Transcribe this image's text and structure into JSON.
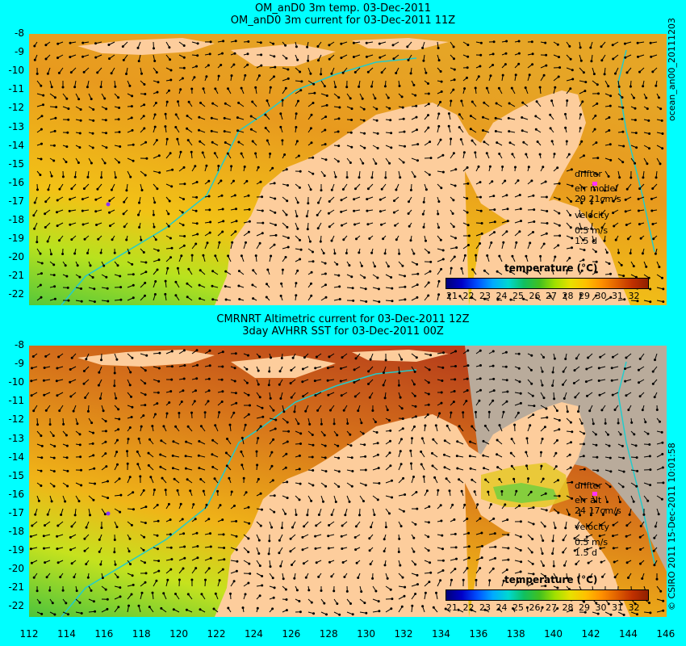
{
  "top": {
    "title1": "OM_anD0 3m temp. 03-Dec-2011",
    "title2": "OM_anD0 3m current for 03-Dec-2011 11Z",
    "side_label": "ocean_an00_20111203",
    "legend": {
      "drifter": "drifter",
      "err": "err model",
      "err_val": "29 21cm/s",
      "velocity": "velocity",
      "vel_val": "0.5 m/s",
      "days": "1.5 d"
    },
    "cbar_title": "temperature (°C)"
  },
  "bottom": {
    "title1": "CMRNRT Altimetric current for 03-Dec-2011 12Z",
    "title2": "3day AVHRR SST for 03-Dec-2011 00Z",
    "side_label": "© CSIRO 2011  15-Dec-2011 10:01:58",
    "legend": {
      "drifter": "drifter",
      "err": "err alt",
      "err_val": "24 17cm/s",
      "velocity": "velocity",
      "vel_val": "0.5 m/s",
      "days": "1.5 d"
    },
    "cbar_title": "temperature (°C)"
  },
  "lat_ticks": [
    "-8",
    "-9",
    "-10",
    "-11",
    "-12",
    "-13",
    "-14",
    "-15",
    "-16",
    "-17",
    "-18",
    "-19",
    "-20",
    "-21",
    "-22"
  ],
  "lon_ticks": [
    "112",
    "114",
    "116",
    "118",
    "120",
    "122",
    "124",
    "126",
    "128",
    "130",
    "132",
    "134",
    "136",
    "138",
    "140",
    "142",
    "144",
    "146"
  ],
  "cbar_labels": [
    "21",
    "22",
    "23",
    "24",
    "25",
    "26",
    "27",
    "28",
    "29",
    "30",
    "31",
    "32"
  ],
  "colors": {
    "background": "#00ffff",
    "land": "#fdcd9c",
    "shelf_line": "#22cccc",
    "drifter": "#ff33ff"
  }
}
